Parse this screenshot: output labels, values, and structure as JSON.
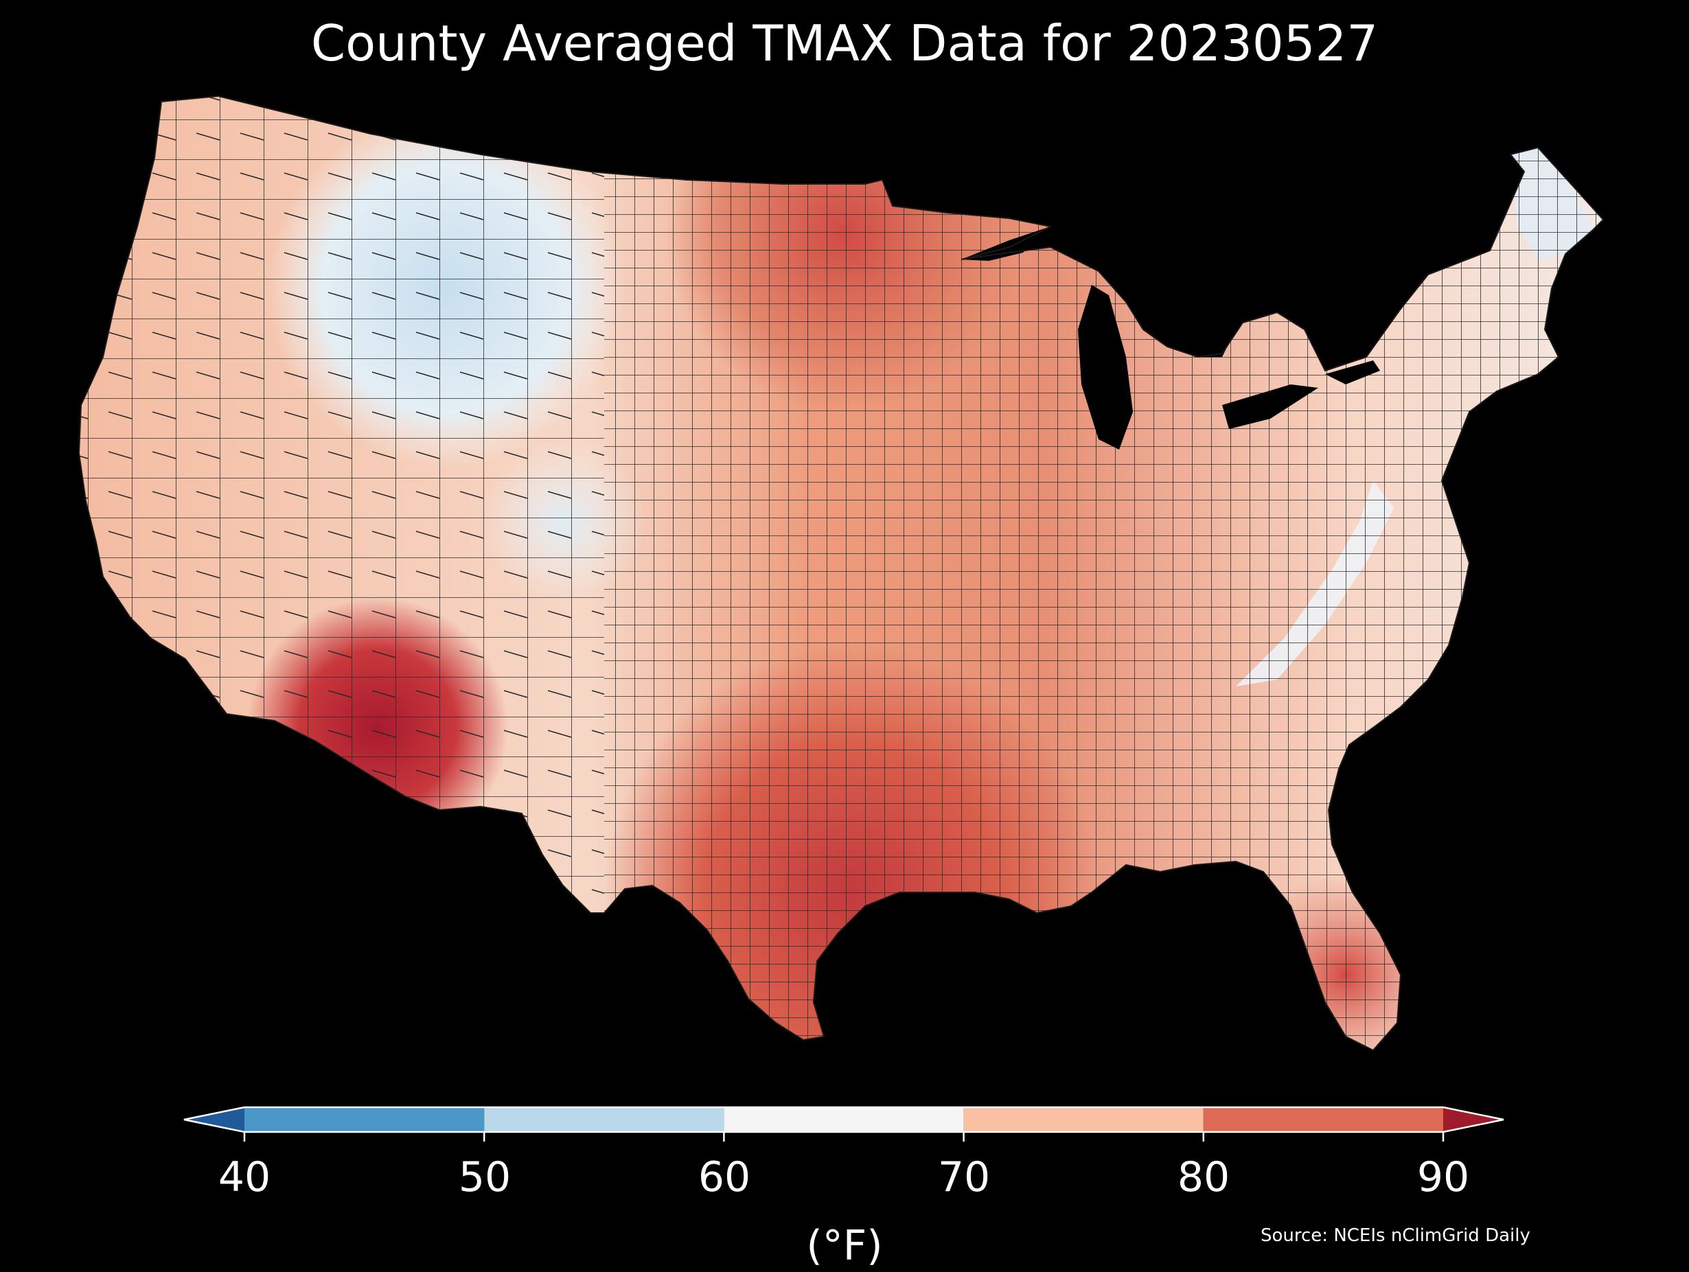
{
  "title": "County Averaged TMAX Data for 20230527",
  "source": "Source: NCEIs nClimGrid Daily",
  "colorbar": {
    "unit": "(°F)",
    "ticks": [
      "40",
      "50",
      "60",
      "70",
      "80",
      "90"
    ],
    "bins": [
      {
        "from": 40,
        "to": 50,
        "color": "#4a97c8"
      },
      {
        "from": 50,
        "to": 60,
        "color": "#b9d8ea"
      },
      {
        "from": 60,
        "to": 70,
        "color": "#f5f5f5"
      },
      {
        "from": 70,
        "to": 80,
        "color": "#f9c0a3"
      },
      {
        "from": 80,
        "to": 90,
        "color": "#de6a55"
      }
    ],
    "under_color": "#1f5a9b",
    "over_color": "#9f1a2b"
  },
  "colors": {
    "background": "#000000",
    "county_border": "#2a2a2a",
    "water": "#000000"
  }
}
